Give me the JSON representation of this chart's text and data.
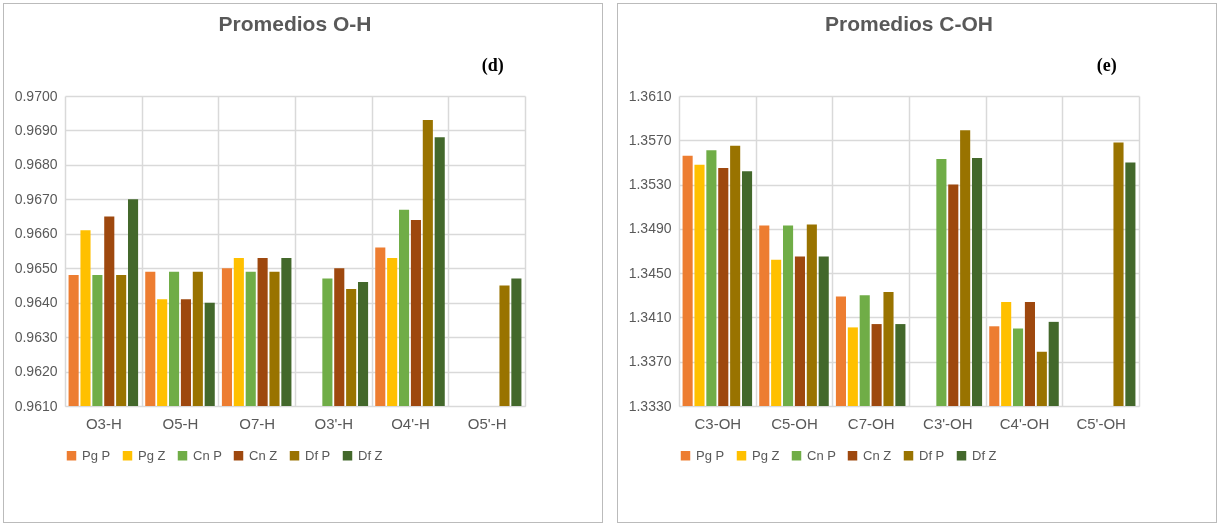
{
  "chart_data": [
    {
      "type": "bar",
      "title": "Promedios O-H",
      "annotations": [
        "(d)"
      ],
      "categories": [
        "O3-H",
        "O5-H",
        "O7-H",
        "O3'-H",
        "O4'-H",
        "O5'-H"
      ],
      "series": [
        {
          "name": "Pg P",
          "color": "#ed7d31",
          "values": [
            0.9648,
            0.9649,
            0.965,
            null,
            0.9656,
            null
          ]
        },
        {
          "name": "Pg Z",
          "color": "#ffc000",
          "values": [
            0.9661,
            0.9641,
            0.9653,
            null,
            0.9653,
            null
          ]
        },
        {
          "name": "Cn P",
          "color": "#70ad47",
          "values": [
            0.9648,
            0.9649,
            0.9649,
            0.9647,
            0.9667,
            null
          ]
        },
        {
          "name": "Cn Z",
          "color": "#9e480e",
          "values": [
            0.9665,
            0.9641,
            0.9653,
            0.965,
            0.9664,
            null
          ]
        },
        {
          "name": "Df P",
          "color": "#997300",
          "values": [
            0.9648,
            0.9649,
            0.9649,
            0.9644,
            0.9693,
            0.9645
          ]
        },
        {
          "name": "Df Z",
          "color": "#43682b",
          "values": [
            0.967,
            0.964,
            0.9653,
            0.9646,
            0.9688,
            0.9647
          ]
        }
      ],
      "ylim": [
        0.961,
        0.97
      ],
      "yticks": [
        {
          "value": 0.961,
          "label": "0.9610"
        },
        {
          "value": 0.962,
          "label": "0.9620"
        },
        {
          "value": 0.963,
          "label": "0.9630"
        },
        {
          "value": 0.964,
          "label": "0.9640"
        },
        {
          "value": 0.965,
          "label": "0.9650"
        },
        {
          "value": 0.966,
          "label": "0.9660"
        },
        {
          "value": 0.967,
          "label": "0.9670"
        },
        {
          "value": 0.968,
          "label": "0.9680"
        },
        {
          "value": 0.969,
          "label": "0.9690"
        },
        {
          "value": 0.97,
          "label": "0.9700"
        }
      ],
      "grid": true,
      "legend": "bottom"
    },
    {
      "type": "bar",
      "title": "Promedios C-OH",
      "annotations": [
        "(e)"
      ],
      "categories": [
        "C3-OH",
        "C5-OH",
        "C7-OH",
        "C3'-OH",
        "C4'-OH",
        "C5'-OH"
      ],
      "series": [
        {
          "name": "Pg P",
          "color": "#ed7d31",
          "values": [
            1.3556,
            1.3493,
            1.3429,
            null,
            1.3402,
            null
          ]
        },
        {
          "name": "Pg Z",
          "color": "#ffc000",
          "values": [
            1.3548,
            1.3462,
            1.3401,
            null,
            1.3424,
            null
          ]
        },
        {
          "name": "Cn P",
          "color": "#70ad47",
          "values": [
            1.3561,
            1.3493,
            1.343,
            1.3553,
            1.34,
            null
          ]
        },
        {
          "name": "Cn Z",
          "color": "#9e480e",
          "values": [
            1.3545,
            1.3465,
            1.3404,
            1.353,
            1.3424,
            null
          ]
        },
        {
          "name": "Df P",
          "color": "#997300",
          "values": [
            1.3565,
            1.3494,
            1.3433,
            1.3579,
            1.3379,
            1.3568
          ]
        },
        {
          "name": "Df Z",
          "color": "#43682b",
          "values": [
            1.3542,
            1.3465,
            1.3404,
            1.3554,
            1.3406,
            1.355
          ]
        }
      ],
      "ylim": [
        1.333,
        1.361
      ],
      "yticks": [
        {
          "value": 1.333,
          "label": "1.3330"
        },
        {
          "value": 1.337,
          "label": "1.3370"
        },
        {
          "value": 1.341,
          "label": "1.3410"
        },
        {
          "value": 1.345,
          "label": "1.3450"
        },
        {
          "value": 1.349,
          "label": "1.3490"
        },
        {
          "value": 1.353,
          "label": "1.3530"
        },
        {
          "value": 1.357,
          "label": "1.3570"
        },
        {
          "value": 1.361,
          "label": "1.3610"
        }
      ],
      "grid": true,
      "legend": "bottom"
    }
  ]
}
